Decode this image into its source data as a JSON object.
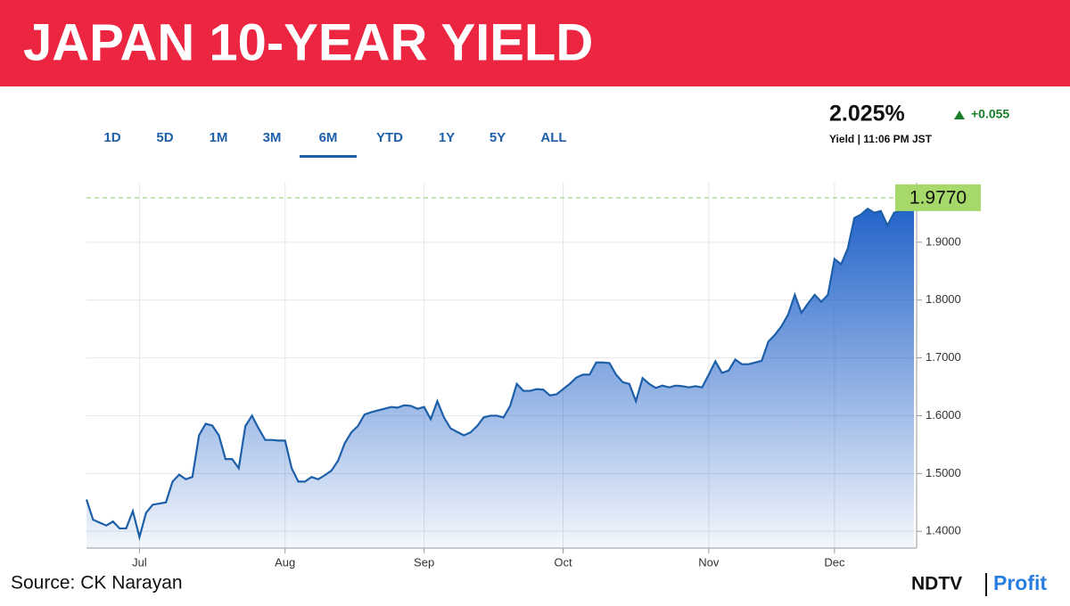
{
  "header": {
    "title": "JAPAN 10-YEAR YIELD"
  },
  "tabs": {
    "items": [
      "1D",
      "5D",
      "1M",
      "3M",
      "6M",
      "YTD",
      "1Y",
      "5Y",
      "ALL"
    ],
    "selected": 4
  },
  "quote": {
    "price": "2.025%",
    "change": "+0.055",
    "caption": "Yield | 11:06 PM JST"
  },
  "footer": {
    "source": "Source: CK Narayan",
    "brand": "NDTV",
    "brand_sub": "Profit"
  },
  "chart_data": {
    "type": "area",
    "color": "#1d5fa8",
    "categories": [
      null,
      null,
      null,
      null,
      null,
      null,
      null,
      null,
      "Jul",
      null,
      null,
      null,
      null,
      null,
      null,
      null,
      null,
      null,
      null,
      null,
      null,
      null,
      null,
      null,
      null,
      null,
      null,
      null,
      null,
      null,
      "Aug",
      null,
      null,
      null,
      null,
      null,
      null,
      null,
      null,
      null,
      null,
      null,
      null,
      null,
      null,
      null,
      null,
      null,
      null,
      null,
      null,
      "Sep",
      null,
      null,
      null,
      null,
      null,
      null,
      null,
      null,
      null,
      null,
      null,
      null,
      null,
      null,
      null,
      null,
      null,
      null,
      null,
      null,
      "Oct",
      null,
      null,
      null,
      null,
      null,
      null,
      null,
      null,
      null,
      null,
      null,
      null,
      null,
      null,
      null,
      null,
      null,
      null,
      null,
      null,
      null,
      "Nov",
      null,
      null,
      null,
      null,
      null,
      null,
      null,
      null,
      null,
      null,
      null,
      null,
      null,
      null,
      null,
      null,
      null,
      null,
      "Dec",
      null,
      null,
      null,
      null,
      null,
      null,
      null,
      null,
      null,
      null,
      null,
      null
    ],
    "values": [
      1.455,
      1.42,
      1.415,
      1.41,
      1.417,
      1.405,
      1.405,
      1.435,
      1.39,
      1.432,
      1.446,
      1.448,
      1.45,
      1.486,
      1.498,
      1.49,
      1.494,
      1.566,
      1.586,
      1.583,
      1.566,
      1.525,
      1.525,
      1.509,
      1.582,
      1.6,
      1.578,
      1.558,
      1.558,
      1.557,
      1.557,
      1.509,
      1.486,
      1.486,
      1.494,
      1.49,
      1.497,
      1.505,
      1.522,
      1.552,
      1.571,
      1.582,
      1.602,
      1.606,
      1.609,
      1.612,
      1.615,
      1.614,
      1.618,
      1.617,
      1.612,
      1.615,
      1.594,
      1.625,
      1.597,
      1.578,
      1.572,
      1.566,
      1.571,
      1.582,
      1.597,
      1.6,
      1.6,
      1.597,
      1.617,
      1.655,
      1.643,
      1.643,
      1.646,
      1.645,
      1.635,
      1.637,
      1.646,
      1.655,
      1.666,
      1.671,
      1.671,
      1.692,
      1.692,
      1.691,
      1.671,
      1.658,
      1.655,
      1.625,
      1.665,
      1.655,
      1.648,
      1.652,
      1.649,
      1.652,
      1.651,
      1.649,
      1.651,
      1.649,
      1.671,
      1.694,
      1.674,
      1.678,
      1.697,
      1.689,
      1.689,
      1.692,
      1.695,
      1.728,
      1.74,
      1.755,
      1.775,
      1.809,
      1.778,
      1.794,
      1.809,
      1.797,
      1.809,
      1.871,
      1.862,
      1.889,
      1.942,
      1.948,
      1.958,
      1.951,
      1.954,
      1.929,
      1.951,
      1.954,
      1.957,
      1.977
    ],
    "last_price": {
      "value": 1.977,
      "label": "1.9770"
    },
    "ylim": [
      1.371,
      2.003
    ],
    "yticks": [
      {
        "value": 1.4,
        "label": "1.4000"
      },
      {
        "value": 1.5,
        "label": "1.5000"
      },
      {
        "value": 1.6,
        "label": "1.6000"
      },
      {
        "value": 1.7,
        "label": "1.7000"
      },
      {
        "value": 1.8,
        "label": "1.8000"
      },
      {
        "value": 1.9,
        "label": "1.9000"
      }
    ],
    "grid": true
  }
}
